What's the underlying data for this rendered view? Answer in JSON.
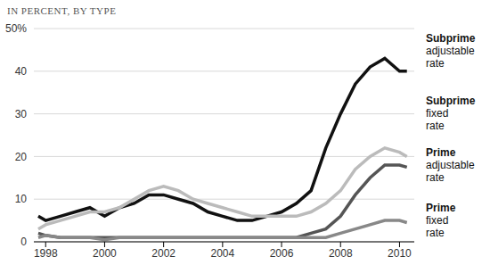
{
  "chart_data": {
    "type": "line",
    "title": "IN PERCENT, BY TYPE",
    "x": [
      1997.75,
      1998,
      1998.5,
      1999,
      1999.5,
      2000,
      2000.5,
      2001,
      2001.5,
      2002,
      2002.5,
      2003,
      2003.5,
      2004,
      2004.5,
      2005,
      2005.5,
      2006,
      2006.5,
      2007,
      2007.5,
      2008,
      2008.5,
      2009,
      2009.5,
      2010,
      2010.25
    ],
    "series": [
      {
        "name": "Subprime adjustable rate",
        "color": "#111111",
        "values": [
          6,
          5,
          6,
          7,
          8,
          6,
          8,
          9,
          11,
          11,
          10,
          9,
          7,
          6,
          5,
          5,
          6,
          7,
          9,
          12,
          22,
          30,
          37,
          41,
          43,
          40,
          40
        ]
      },
      {
        "name": "Subprime fixed rate",
        "color": "#bbbbbb",
        "values": [
          3,
          4,
          5,
          6,
          7,
          7,
          8,
          10,
          12,
          13,
          12,
          10,
          9,
          8,
          7,
          6,
          6,
          6,
          6,
          7,
          9,
          12,
          17,
          20,
          22,
          21,
          20
        ]
      },
      {
        "name": "Prime adjustable rate",
        "color": "#555555",
        "values": [
          2,
          1.5,
          1,
          1,
          1,
          1,
          1,
          1,
          1,
          1,
          1,
          1,
          1,
          1,
          1,
          1,
          1,
          1,
          1,
          2,
          3,
          6,
          11,
          15,
          18,
          18,
          17.5
        ]
      },
      {
        "name": "Prime fixed rate",
        "color": "#888888",
        "values": [
          1,
          1.5,
          1,
          1,
          1,
          0.5,
          1,
          1,
          1,
          1,
          1,
          1,
          1,
          1,
          1,
          1,
          1,
          1,
          1,
          1,
          1,
          2,
          3,
          4,
          5,
          5,
          4.5
        ]
      }
    ],
    "xlim": [
      1997.6,
      2010.5
    ],
    "xticks": [
      1998,
      2000,
      2002,
      2004,
      2006,
      2008,
      2010
    ],
    "ylim": [
      0,
      50
    ],
    "yticks": [
      0,
      10,
      20,
      30,
      40,
      {
        "value": 50,
        "label": "50%"
      }
    ],
    "grid": true
  }
}
